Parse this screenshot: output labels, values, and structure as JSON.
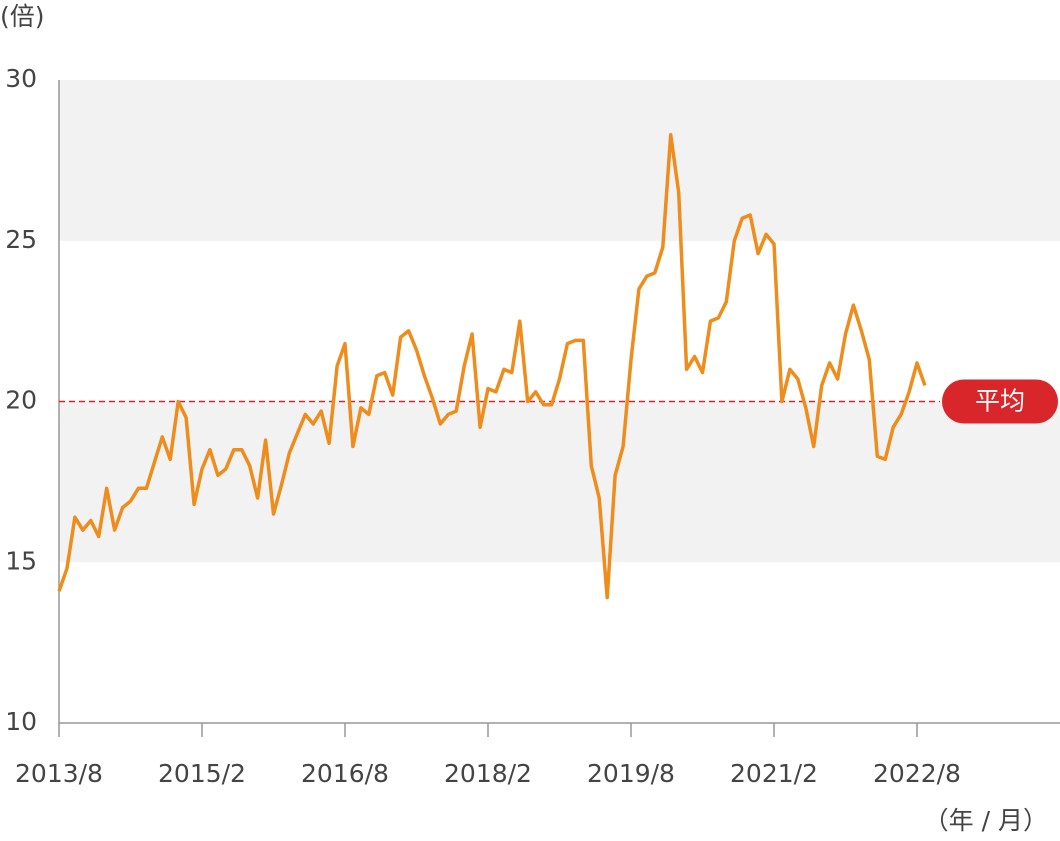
{
  "chart_data": {
    "type": "line",
    "y_label": "(倍)",
    "x_label": "（年 / 月）",
    "categories": [
      "2013/8",
      "2013/9",
      "2013/10",
      "2013/11",
      "2013/12",
      "2014/1",
      "2014/2",
      "2014/3",
      "2014/4",
      "2014/5",
      "2014/6",
      "2014/7",
      "2014/8",
      "2014/9",
      "2014/10",
      "2014/11",
      "2014/12",
      "2015/1",
      "2015/2",
      "2015/3",
      "2015/4",
      "2015/5",
      "2015/6",
      "2015/7",
      "2015/8",
      "2015/9",
      "2015/10",
      "2015/11",
      "2015/12",
      "2016/1",
      "2016/2",
      "2016/3",
      "2016/4",
      "2016/5",
      "2016/6",
      "2016/7",
      "2016/8",
      "2016/9",
      "2016/10",
      "2016/11",
      "2016/12",
      "2017/1",
      "2017/2",
      "2017/3",
      "2017/4",
      "2017/5",
      "2017/6",
      "2017/7",
      "2017/8",
      "2017/9",
      "2017/10",
      "2017/11",
      "2017/12",
      "2018/1",
      "2018/2",
      "2018/3",
      "2018/4",
      "2018/5",
      "2018/6",
      "2018/7",
      "2018/8",
      "2018/9",
      "2018/10",
      "2018/11",
      "2018/12",
      "2019/1",
      "2019/2",
      "2019/3",
      "2019/4",
      "2019/5",
      "2019/6",
      "2019/7",
      "2019/8",
      "2019/9",
      "2019/10",
      "2019/11",
      "2019/12",
      "2020/1",
      "2020/2",
      "2020/3",
      "2020/4",
      "2020/5",
      "2020/6",
      "2020/7",
      "2020/8",
      "2020/9",
      "2020/10",
      "2020/11",
      "2020/12",
      "2021/1",
      "2021/2",
      "2021/3",
      "2021/4",
      "2021/5",
      "2021/6",
      "2021/7",
      "2021/8",
      "2021/9",
      "2021/10",
      "2021/11",
      "2021/12",
      "2022/1",
      "2022/2",
      "2022/3",
      "2022/4",
      "2022/5",
      "2022/6",
      "2022/7",
      "2022/8",
      "2022/9"
    ],
    "values": [
      14.1,
      14.8,
      16.4,
      16.0,
      16.3,
      15.8,
      17.3,
      16.0,
      16.7,
      16.9,
      17.3,
      17.3,
      18.1,
      18.9,
      18.2,
      20.0,
      19.5,
      16.8,
      17.9,
      18.5,
      17.7,
      17.9,
      18.5,
      18.5,
      18.0,
      17.0,
      18.8,
      16.5,
      17.4,
      18.4,
      19.0,
      19.6,
      19.3,
      19.7,
      18.7,
      21.1,
      21.8,
      18.6,
      19.8,
      19.6,
      20.8,
      20.9,
      20.2,
      22.0,
      22.2,
      21.6,
      20.8,
      20.1,
      19.3,
      19.6,
      19.7,
      21.1,
      22.1,
      19.2,
      20.4,
      20.3,
      21.0,
      20.9,
      22.5,
      20.0,
      20.3,
      19.9,
      19.9,
      20.7,
      21.8,
      21.9,
      21.9,
      18.0,
      17.0,
      13.9,
      17.7,
      18.6,
      21.3,
      23.5,
      23.9,
      24.0,
      24.8,
      28.3,
      26.5,
      21.0,
      21.4,
      20.9,
      22.5,
      22.6,
      23.1,
      25.0,
      25.7,
      25.8,
      24.6,
      25.2,
      24.9,
      20.0,
      21.0,
      20.7,
      19.8,
      18.6,
      20.5,
      21.2,
      20.7,
      22.1,
      23.0,
      22.2,
      21.3,
      18.3,
      18.2,
      19.2,
      19.6,
      20.3,
      21.2,
      20.5
    ],
    "color": "#ee8c1c",
    "xlim": [
      "2013/8",
      "2024/2"
    ],
    "xticks": [
      "2013/8",
      "2015/2",
      "2016/8",
      "2018/2",
      "2019/8",
      "2021/2",
      "2022/8"
    ],
    "ylim": [
      10,
      30
    ],
    "yticks": [
      10,
      15,
      20,
      25,
      30
    ],
    "band_color": "#f2f2f2",
    "average": {
      "value": 20,
      "label": "平均",
      "color": "#d9262b"
    }
  }
}
